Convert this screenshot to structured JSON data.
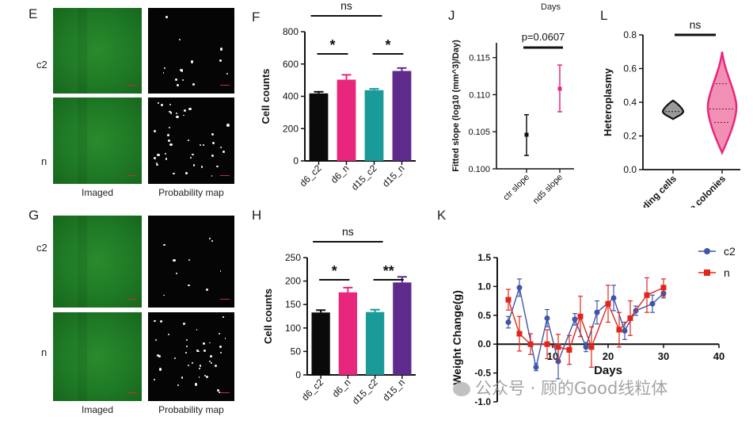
{
  "panel_labels": {
    "E": "E",
    "F": "F",
    "G": "G",
    "H": "H",
    "J": "J",
    "K": "K",
    "L": "L"
  },
  "top_days_label": "Days",
  "micro": {
    "row_labels_E": [
      "c2",
      "n"
    ],
    "row_labels_G": [
      "c2",
      "n"
    ],
    "captions_E": [
      "Imaged",
      "Probability map"
    ],
    "captions_G": [
      "Imaged",
      "Probability map"
    ]
  },
  "colors": {
    "black_bar": "#0a0a0a",
    "pink": "#e8277c",
    "teal": "#1a9a98",
    "purple": "#5e2a8c",
    "blue": "#3f56a8",
    "red": "#e0261b",
    "sig_line": "#111111"
  },
  "chart_data": [
    {
      "id": "F",
      "type": "bar",
      "title": "",
      "ylabel": "Cell counts",
      "categories": [
        "d6_c2",
        "d6_n",
        "d15_c2",
        "d15_n"
      ],
      "values": [
        418,
        503,
        438,
        557
      ],
      "errors": [
        10,
        30,
        8,
        18
      ],
      "ylim": [
        0,
        800
      ],
      "yticks": [
        "0",
        "200",
        "400",
        "600",
        "800"
      ],
      "annotations": [
        {
          "text": "ns",
          "from": 0,
          "to": 2
        },
        {
          "text": "*",
          "from": 0,
          "to": 1
        },
        {
          "text": "*",
          "from": 2,
          "to": 3
        }
      ]
    },
    {
      "id": "H",
      "type": "bar",
      "title": "",
      "ylabel": "Cell counts",
      "categories": [
        "d6_c2",
        "d6_n",
        "d15_c2",
        "d15_n"
      ],
      "values": [
        133,
        176,
        134,
        197
      ],
      "errors": [
        5,
        10,
        5,
        12
      ],
      "ylim": [
        0,
        250
      ],
      "yticks": [
        "0",
        "50",
        "100",
        "150",
        "200",
        "250"
      ],
      "annotations": [
        {
          "text": "ns",
          "from": 0,
          "to": 2
        },
        {
          "text": "*",
          "from": 0,
          "to": 1
        },
        {
          "text": "**",
          "from": 2,
          "to": 3
        }
      ]
    },
    {
      "id": "J",
      "type": "scatter",
      "title": "",
      "ylabel": "Fitted slope (log10 (mm^3)/Day)",
      "categories": [
        "ctr slope",
        "nd5 slope"
      ],
      "values": [
        0.1046,
        0.1108
      ],
      "lower": [
        0.1018,
        0.1077
      ],
      "upper": [
        0.1073,
        0.114
      ],
      "ylim": [
        0.1,
        0.117
      ],
      "yticks": [
        "0.100",
        "0.105",
        "0.110",
        "0.115"
      ],
      "annotation": "p=0.0607"
    },
    {
      "id": "L",
      "type": "violin",
      "title": "",
      "ylabel": "Heteroplasmy",
      "categories": [
        "seeding cells",
        "soft agar single colonies"
      ],
      "medians": [
        0.345,
        0.36
      ],
      "ranges": [
        [
          0.3,
          0.41
        ],
        [
          0.1,
          0.7
        ]
      ],
      "ylim": [
        0.0,
        0.8
      ],
      "yticks": [
        "0.0",
        "0.2",
        "0.4",
        "0.6",
        "0.8"
      ],
      "annotation": "ns"
    },
    {
      "id": "K",
      "type": "line",
      "title": "",
      "xlabel": "Days",
      "ylabel": "Weight Change(g)",
      "xlim": [
        0,
        40
      ],
      "ylim": [
        -1.0,
        1.5
      ],
      "xticks": [
        "10",
        "20",
        "30",
        "40"
      ],
      "yticks": [
        "-1.0",
        "-0.5",
        "0.0",
        "0.5",
        "1.0",
        "1.5"
      ],
      "series": [
        {
          "name": "c2",
          "x": [
            2,
            4,
            7,
            9,
            11,
            14,
            16,
            18,
            21,
            23,
            25,
            28,
            30
          ],
          "y": [
            0.38,
            0.98,
            -0.4,
            0.45,
            -0.3,
            0.43,
            -0.05,
            0.55,
            0.8,
            0.23,
            0.58,
            0.7,
            0.88
          ],
          "err": [
            0.1,
            0.15,
            0.06,
            0.15,
            0.3,
            0.1,
            0.08,
            0.2,
            0.22,
            0.15,
            0.08,
            0.15,
            0.08
          ]
        },
        {
          "name": "n",
          "x": [
            2,
            4,
            6,
            9,
            11,
            13,
            15,
            17,
            20,
            22,
            24,
            27,
            30
          ],
          "y": [
            0.77,
            0.18,
            0.0,
            0.0,
            -0.05,
            -0.1,
            0.48,
            -0.05,
            0.7,
            0.25,
            0.45,
            0.85,
            0.98
          ],
          "err": [
            0.18,
            0.3,
            0.18,
            0.25,
            0.22,
            0.25,
            0.35,
            0.35,
            0.32,
            0.3,
            0.3,
            0.3,
            0.15
          ]
        }
      ]
    }
  ],
  "watermark": "公众号 · 顾的Good线粒体"
}
